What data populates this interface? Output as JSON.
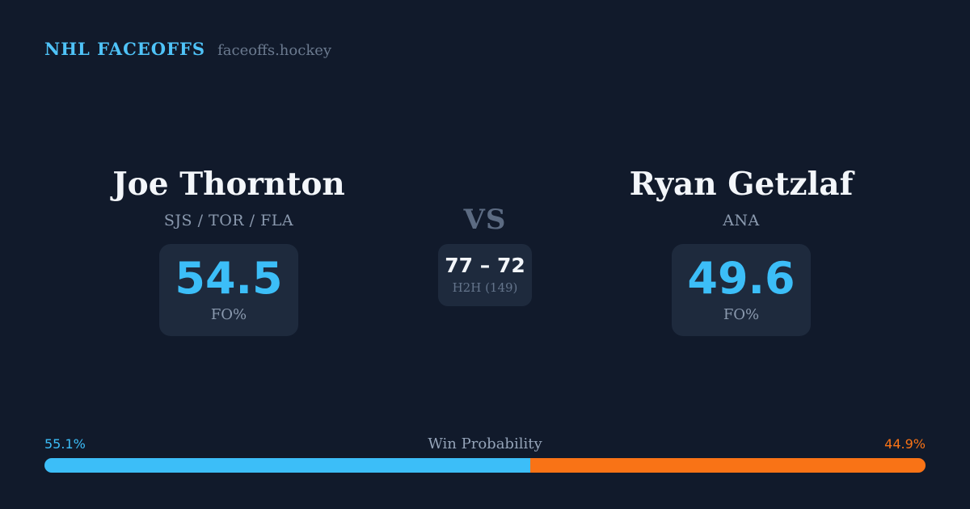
{
  "header": {
    "brand": "NHL FACEOFFS",
    "site": "faceoffs.hockey"
  },
  "players": {
    "left": {
      "name": "Joe Thornton",
      "teams": "SJS / TOR / FLA",
      "fo_pct": "54.5",
      "fo_label": "FO%"
    },
    "right": {
      "name": "Ryan Getzlaf",
      "teams": "ANA",
      "fo_pct": "49.6",
      "fo_label": "FO%"
    }
  },
  "matchup": {
    "vs_label": "VS",
    "h2h_score": "77 – 72",
    "h2h_label": "H2H (149)"
  },
  "win_probability": {
    "label": "Win Probability",
    "left_pct": 55.1,
    "right_pct": 44.9,
    "left_label": "55.1%",
    "right_label": "44.9%"
  },
  "colors": {
    "background": "#111a2b",
    "card": "#1e2a3d",
    "accent_blue": "#3cbef8",
    "accent_orange": "#f97316",
    "brand_blue": "#4fc3f8",
    "text_primary": "#f3f6fa",
    "text_muted": "#8b9aaf",
    "text_subtle": "#64748b",
    "vs_color": "#5c6b82"
  }
}
